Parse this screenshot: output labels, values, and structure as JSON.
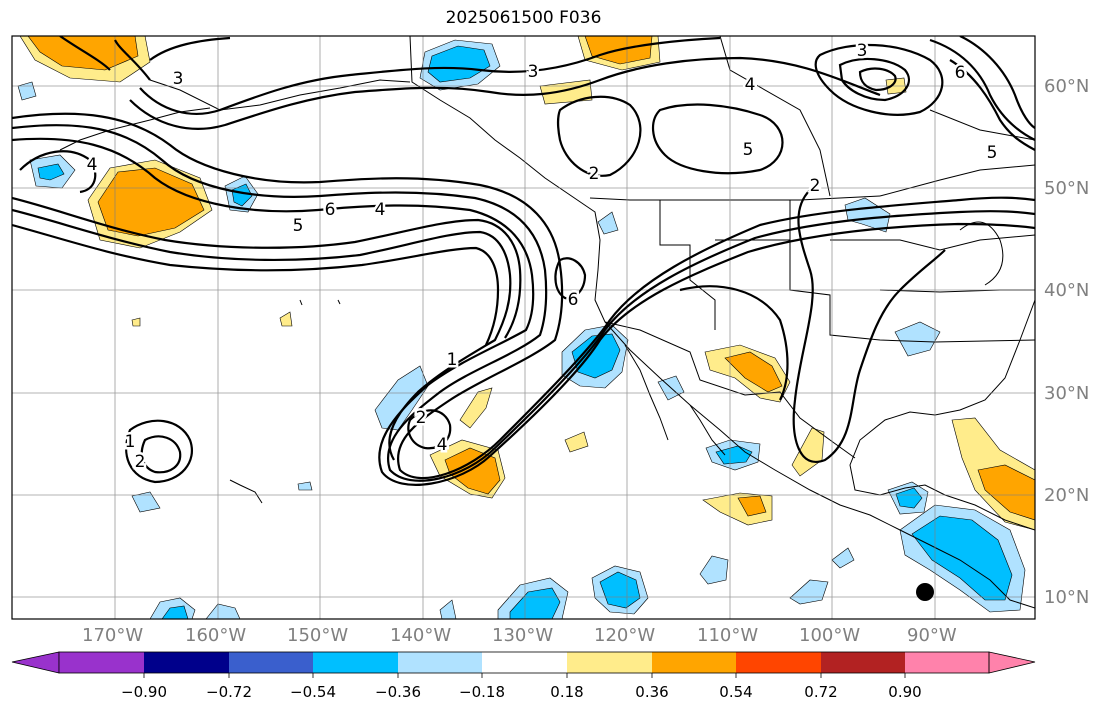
{
  "title": "2025061500 F036",
  "lat_labels": [
    "60°N",
    "50°N",
    "40°N",
    "30°N",
    "20°N",
    "10°N"
  ],
  "lon_labels": [
    "170°W",
    "160°W",
    "150°W",
    "140°W",
    "130°W",
    "120°W",
    "110°W",
    "100°W",
    "90°W"
  ],
  "contour_labels": [
    "3",
    "3",
    "4",
    "6",
    "5",
    "5",
    "3",
    "2",
    "2",
    "5",
    "6",
    "4",
    "4",
    "6",
    "1",
    "2",
    "4",
    "1",
    "2"
  ],
  "colorbar": {
    "tick_labels": [
      "−0.90",
      "−0.72",
      "−0.54",
      "−0.36",
      "−0.18",
      "0.18",
      "0.36",
      "0.54",
      "0.72",
      "0.90"
    ],
    "colors": [
      "#9932cc",
      "#00008b",
      "#3a5fcd",
      "#00bfff",
      "#b0e2ff",
      "#ffffff",
      "#ffec8b",
      "#ffa500",
      "#ff4500",
      "#b22222",
      "#ff82ab"
    ]
  }
}
